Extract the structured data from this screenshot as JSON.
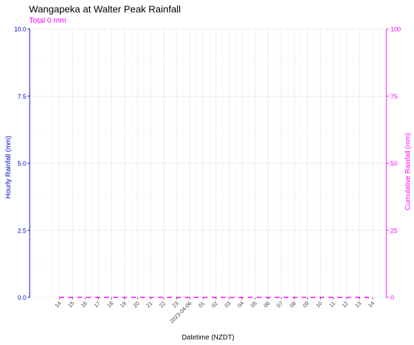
{
  "chart_data": {
    "type": "bar",
    "title": "Wangapeka at Walter Peak Rainfall",
    "subtitle": "Total 0 mm",
    "xlabel": "Datetime (NZDT)",
    "ylabel_left": "Hourly Rainfall (mm)",
    "ylabel_right": "Cumulative Rainfall (mm)",
    "ylim_left": [
      0,
      10
    ],
    "ylim_right": [
      0,
      100
    ],
    "yticks_left": [
      "0.0",
      "2.5",
      "5.0",
      "7.5",
      "10.0"
    ],
    "yticks_right": [
      "0",
      "25",
      "50",
      "75",
      "100"
    ],
    "grid": true,
    "x": [
      "14",
      "15",
      "16",
      "17",
      "18",
      "19",
      "20",
      "21",
      "22",
      "23",
      "2023-04-06",
      "01",
      "02",
      "03",
      "04",
      "05",
      "06",
      "07",
      "08",
      "09",
      "10",
      "11",
      "12",
      "13",
      "14"
    ],
    "series": [
      {
        "values": [
          0,
          0,
          0,
          0,
          0,
          0,
          0,
          0,
          0,
          0,
          0,
          0,
          0,
          0,
          0,
          0,
          0,
          0,
          0,
          0,
          0,
          0,
          0,
          0,
          0
        ]
      },
      {
        "values": [
          0,
          0,
          0,
          0,
          0,
          0,
          0,
          0,
          0,
          0,
          0,
          0,
          0,
          0,
          0,
          0,
          0,
          0,
          0,
          0,
          0,
          0,
          0,
          0,
          0
        ]
      }
    ],
    "colors": {
      "hourly": "#0000cc",
      "cumulative": "#ff00ff",
      "text_dark": "#444444"
    }
  }
}
